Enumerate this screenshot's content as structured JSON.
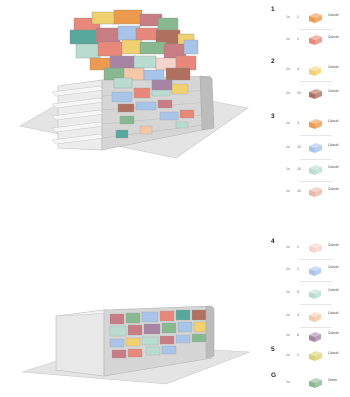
{
  "colors": {
    "ground": "#dcdcdc",
    "building_front": "#d0d0d0",
    "building_side": "#b6b6b6",
    "building_top": "#ececec",
    "slab": "#f4f4f4",
    "legend_red": "#c6342e",
    "orange": "#ee9a4e",
    "coral": "#e8887a",
    "yellow": "#f0d070",
    "brown": "#b07060",
    "blue": "#a8c4e8",
    "mint": "#b8dcd0",
    "peach": "#f2c8a8",
    "pink": "#f6d4cc",
    "mauve": "#a884a4",
    "olive": "#dcd278",
    "green": "#88b890",
    "teal": "#58a89c",
    "rose": "#c87c84"
  },
  "legend": {
    "groups": [
      {
        "number": "1",
        "rows": [
          {
            "qty": "1x",
            "count": "1",
            "icon": "orange-block-icon",
            "color": "#ee9a4e",
            "label": "Cuboid",
            "sub": ""
          },
          {
            "qty": "1x",
            "count": "2",
            "icon": "coral-block-icon",
            "color": "#e8887a",
            "label": "Cuboid",
            "sub": ""
          }
        ]
      },
      {
        "number": "2",
        "rows": [
          {
            "qty": "1x",
            "count": "4",
            "icon": "yellow-stepped-block-icon",
            "color": "#f0d070",
            "label": "Cuboid",
            "sub": ""
          },
          {
            "qty": "1x",
            "count": "10",
            "icon": "brown-block-icon",
            "color": "#b07060",
            "label": "Cuboid",
            "sub": ""
          }
        ]
      },
      {
        "number": "3",
        "rows": [
          {
            "qty": "1x",
            "count": "3",
            "icon": "orange-block-icon",
            "color": "#ee9a4e",
            "label": "Cuboid",
            "sub": ""
          },
          {
            "qty": "1x",
            "count": "10",
            "icon": "blue-block-icon",
            "color": "#a8c4e8",
            "label": "Cuboid",
            "sub": ""
          },
          {
            "qty": "1x",
            "count": "10",
            "icon": "mint-block-icon",
            "color": "#b8dcd0",
            "label": "Cuboid",
            "sub": ""
          },
          {
            "qty": "1x",
            "count": "10",
            "icon": "peach-block-icon",
            "color": "#e8b8a8",
            "label": "Cuboid",
            "sub": ""
          }
        ]
      },
      {
        "number": "4",
        "rows": [
          {
            "qty": "1x",
            "count": "1",
            "icon": "pink-block-icon",
            "color": "#f6d4cc",
            "label": "Cuboid",
            "sub": ""
          },
          {
            "qty": "1x",
            "count": "1",
            "icon": "blue-stepped-block-icon",
            "color": "#a8c4e8",
            "label": "Cuboid",
            "sub": ""
          },
          {
            "qty": "1x",
            "count": "3",
            "icon": "mint-stepped-block-icon",
            "color": "#b8dcd0",
            "label": "Cuboid",
            "sub": ""
          },
          {
            "qty": "1x",
            "count": "4",
            "icon": "peach-stepped-block-icon",
            "color": "#f2c8a8",
            "label": "Cuboid",
            "sub": ""
          },
          {
            "qty": "1x",
            "count": "8",
            "icon": "mauve-stepped-block-icon",
            "color": "#a884a4",
            "label": "Cuboid",
            "sub": ""
          }
        ]
      },
      {
        "number": "5",
        "rows": [
          {
            "qty": "1x",
            "count": "1",
            "icon": "olive-block-icon",
            "color": "#dcd278",
            "label": "Cuboid",
            "sub": ""
          }
        ]
      },
      {
        "number": "G",
        "rows": [
          {
            "qty": "1x",
            "count": "",
            "icon": "green-block-icon",
            "color": "#88b890",
            "label": "Green",
            "sub": ""
          }
        ]
      }
    ]
  }
}
